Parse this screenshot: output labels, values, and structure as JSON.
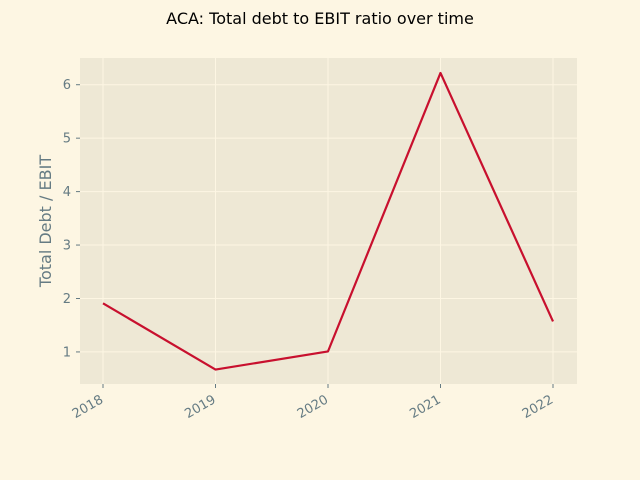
{
  "colors": {
    "figure_bg": "#fdf6e3",
    "plot_bg": "#eee8d5",
    "grid": "#fdf6e3",
    "line": "#c8102e",
    "text": "#657b83",
    "title": "#000000"
  },
  "chart_data": {
    "type": "line",
    "title": "ACA: Total debt to EBIT ratio over time",
    "xlabel": "",
    "ylabel": "Total Debt / EBIT",
    "categories": [
      "2018",
      "2019",
      "2020",
      "2021",
      "2022"
    ],
    "series": [
      {
        "values": [
          1.91,
          0.67,
          1.01,
          6.22,
          1.57
        ]
      }
    ],
    "yticks": [
      1,
      2,
      3,
      4,
      5,
      6
    ],
    "ylim": [
      0.4,
      6.5
    ],
    "grid": true,
    "legend": "none"
  }
}
